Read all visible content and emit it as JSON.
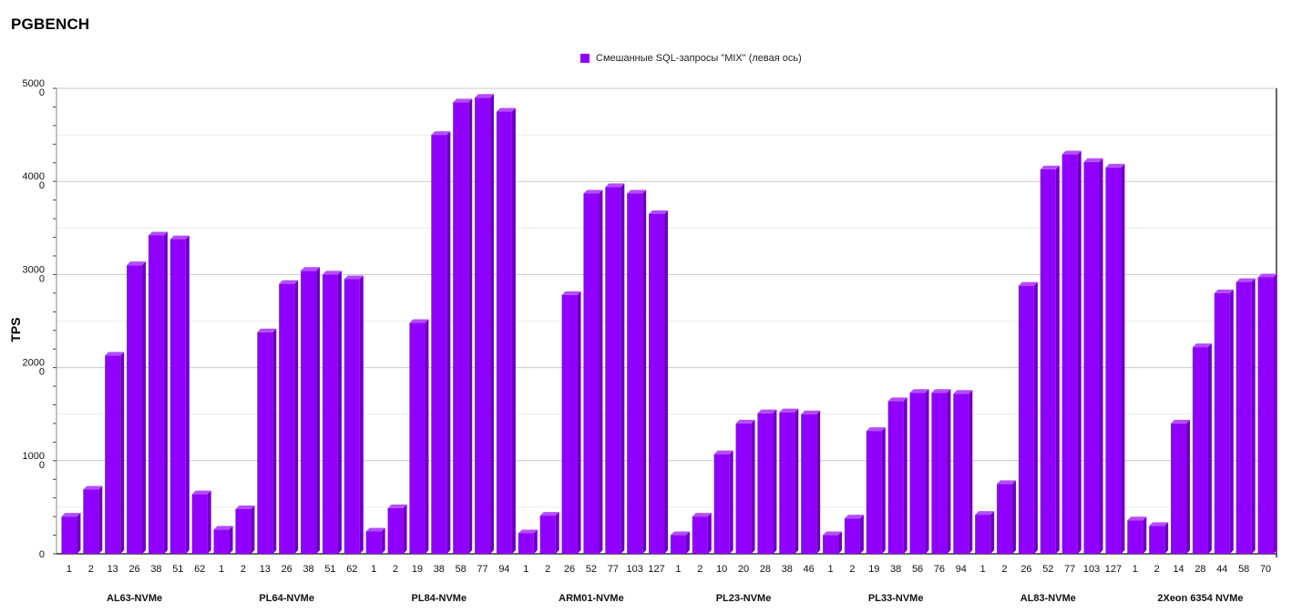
{
  "title": "PGBENCH",
  "legend": {
    "label": "Смешанные SQL-запросы \"MIX\" (левая ось)",
    "color": "#9000ff"
  },
  "chart_data": {
    "type": "bar",
    "title": "PGBENCH",
    "ylabel": "TPS",
    "xlabel": "",
    "ylim": [
      0,
      50000
    ],
    "y_ticks": [
      {
        "value": 0,
        "label": [
          "0"
        ]
      },
      {
        "value": 10000,
        "label": [
          "1000",
          "0"
        ]
      },
      {
        "value": 20000,
        "label": [
          "2000",
          "0"
        ]
      },
      {
        "value": 30000,
        "label": [
          "3000",
          "0"
        ]
      },
      {
        "value": 40000,
        "label": [
          "4000",
          "0"
        ]
      },
      {
        "value": 50000,
        "label": [
          "5000",
          "0"
        ]
      }
    ],
    "grid": true,
    "legend_position": "top-center",
    "bar_color": "#9000ff",
    "series": [
      {
        "name": "Смешанные SQL-запросы \"MIX\" (левая ось)",
        "groups": [
          {
            "name": "AL63-NVMe",
            "categories": [
              "1",
              "2",
              "13",
              "26",
              "38",
              "51",
              "62"
            ],
            "values": [
              4000,
              6900,
              21300,
              31000,
              34200,
              33800,
              6400
            ]
          },
          {
            "name": "PL64-NVMe",
            "categories": [
              "1",
              "2",
              "13",
              "26",
              "38",
              "51",
              "62"
            ],
            "values": [
              2600,
              4800,
              23800,
              29000,
              30400,
              30000,
              29500
            ]
          },
          {
            "name": "PL84-NVMe",
            "categories": [
              "1",
              "2",
              "19",
              "38",
              "58",
              "77",
              "94"
            ],
            "values": [
              2400,
              4900,
              24800,
              45000,
              48500,
              49000,
              47500
            ]
          },
          {
            "name": "ARM01-NVMe",
            "categories": [
              "1",
              "2",
              "26",
              "52",
              "77",
              "103",
              "127"
            ],
            "values": [
              2200,
              4100,
              27800,
              38700,
              39400,
              38700,
              36500
            ]
          },
          {
            "name": "PL23-NVMe",
            "categories": [
              "1",
              "2",
              "10",
              "20",
              "28",
              "38",
              "46"
            ],
            "values": [
              2000,
              4000,
              10700,
              14000,
              15100,
              15200,
              15000
            ]
          },
          {
            "name": "PL33-NVMe",
            "categories": [
              "1",
              "2",
              "19",
              "38",
              "56",
              "76",
              "94"
            ],
            "values": [
              2000,
              3800,
              13200,
              16400,
              17300,
              17300,
              17200
            ]
          },
          {
            "name": "AL83-NVMe",
            "categories": [
              "1",
              "2",
              "26",
              "52",
              "77",
              "103",
              "127"
            ],
            "values": [
              4200,
              7500,
              28800,
              41300,
              42900,
              42100,
              41500
            ]
          },
          {
            "name": "2Xeon 6354 NVMe",
            "categories": [
              "1",
              "2",
              "14",
              "28",
              "44",
              "58",
              "70"
            ],
            "values": [
              3600,
              3000,
              14000,
              22200,
              28000,
              29200,
              29700
            ]
          }
        ]
      }
    ]
  }
}
